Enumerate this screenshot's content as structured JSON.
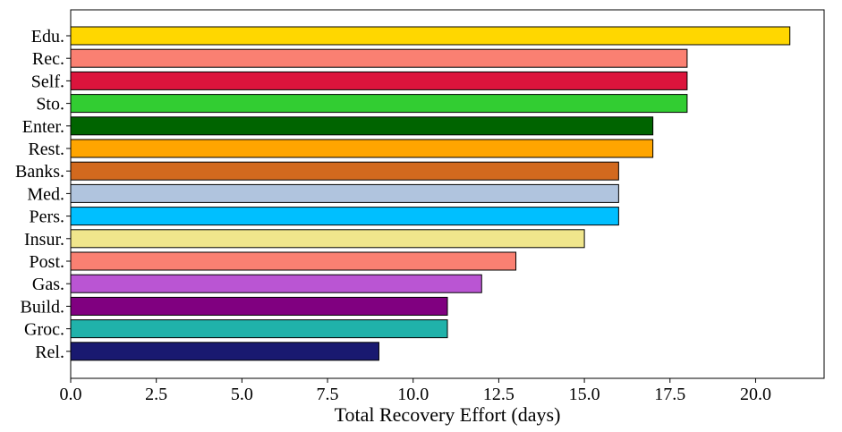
{
  "chart_data": {
    "type": "bar",
    "orientation": "horizontal",
    "categories": [
      "Edu.",
      "Rec.",
      "Self.",
      "Sto.",
      "Enter.",
      "Rest.",
      "Banks.",
      "Med.",
      "Pers.",
      "Insur.",
      "Post.",
      "Gas.",
      "Build.",
      "Groc.",
      "Rel."
    ],
    "values": [
      21,
      18,
      18,
      18,
      17,
      17,
      16,
      16,
      16,
      15,
      13,
      12,
      11,
      11,
      9
    ],
    "colors": [
      "#FFD700",
      "#FA8072",
      "#DC143C",
      "#32CD32",
      "#006400",
      "#FFA500",
      "#D2691E",
      "#B0C4DE",
      "#00BFFF",
      "#F0E68C",
      "#FA8072",
      "#BA55D3",
      "#800080",
      "#20B2AA",
      "#191970"
    ],
    "title": "",
    "xlabel": "Total Recovery Effort (days)",
    "ylabel": "",
    "xlim": [
      0,
      22
    ],
    "xticks": [
      "0.0",
      "2.5",
      "5.0",
      "7.5",
      "10.0",
      "12.5",
      "15.0",
      "17.5",
      "20.0"
    ],
    "grid": false,
    "legend": "none"
  }
}
